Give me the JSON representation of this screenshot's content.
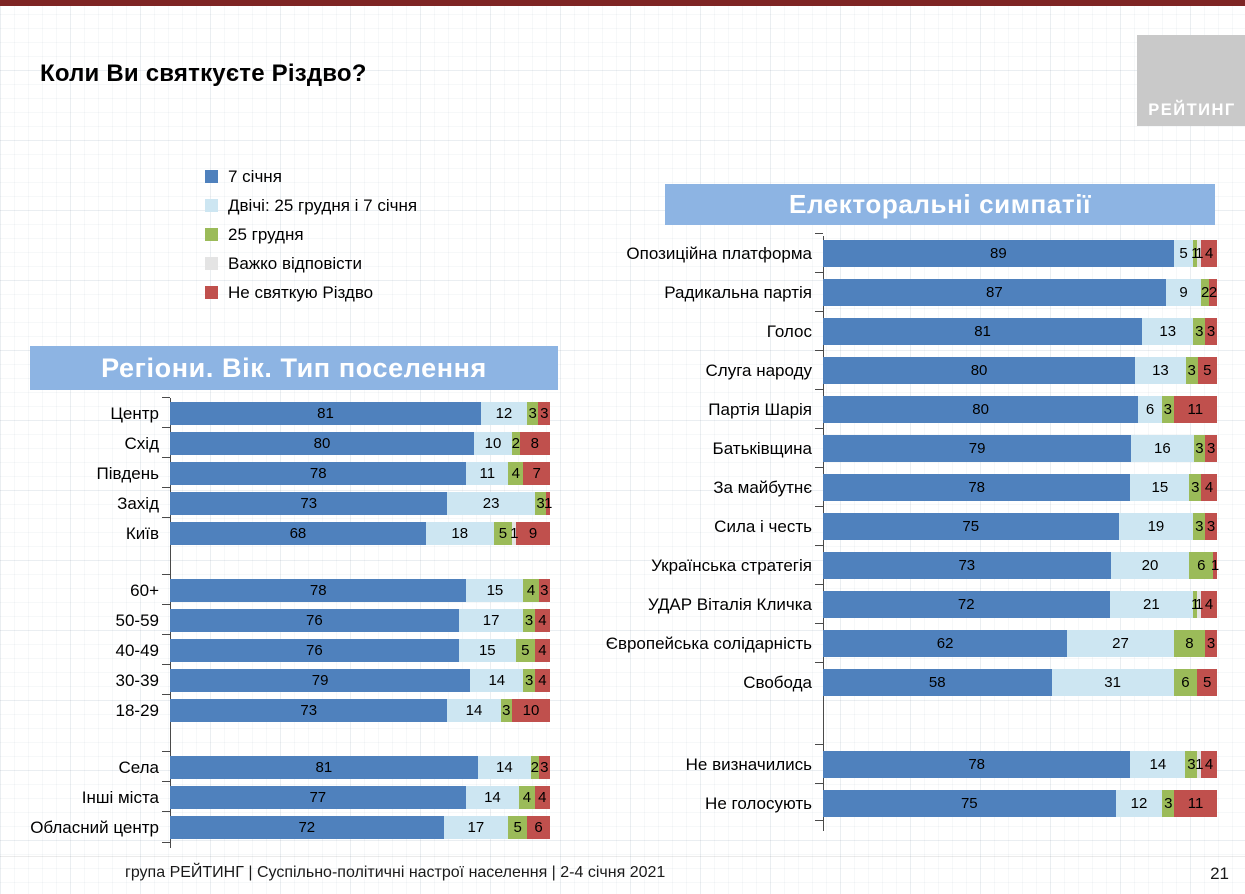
{
  "slide": {
    "title": "Коли Ви святкуєте Різдво?",
    "logo_text": "РЕЙТИНГ",
    "footer": "група РЕЙТИНГ | Суспільно-політичні настрої населення  | 2-4 січня 2021",
    "page_number": "21"
  },
  "colors": {
    "series": [
      "#4f81bd",
      "#cde6f2",
      "#9bbb59",
      "#e4e4e4",
      "#c0504d"
    ],
    "series_keys": [
      "jan7",
      "both-dates",
      "dec25",
      "hard-to-say",
      "no-celebrate"
    ],
    "banner_bg": "#8db4e3",
    "banner_text": "#ffffff",
    "top_bar": "#7e2524",
    "logo_bg": "#c9c9c9",
    "axis": "#4a4a4a"
  },
  "legend": {
    "items": [
      {
        "label": "7 січня",
        "color": "#4f81bd"
      },
      {
        "label": "Двічі: 25 грудня і 7 січня",
        "color": "#cde6f2"
      },
      {
        "label": "25 грудня",
        "color": "#9bbb59"
      },
      {
        "label": "Важко відповісти",
        "color": "#e4e4e4"
      },
      {
        "label": "Не святкую Різдво",
        "color": "#c0504d"
      }
    ]
  },
  "chart_data": [
    {
      "type": "bar",
      "variant": "horizontal-stacked",
      "title": "Регіони. Вік. Тип поселення",
      "unit": "%",
      "xlim": [
        0,
        100
      ],
      "series_names": [
        "7 січня",
        "Двічі: 25 грудня і 7 січня",
        "25 грудня",
        "Важко відповісти",
        "Не святкую Різдво"
      ],
      "groups": [
        {
          "name": "regions",
          "rows": [
            {
              "label": "Центр",
              "values": [
                81,
                12,
                3,
                0,
                3
              ]
            },
            {
              "label": "Схід",
              "values": [
                80,
                10,
                2,
                0,
                8
              ]
            },
            {
              "label": "Південь",
              "values": [
                78,
                11,
                4,
                0,
                7
              ]
            },
            {
              "label": "Захід",
              "values": [
                73,
                23,
                3,
                0,
                1
              ]
            },
            {
              "label": "Київ",
              "values": [
                68,
                18,
                5,
                1,
                9
              ]
            }
          ]
        },
        {
          "name": "age",
          "rows": [
            {
              "label": "60+",
              "values": [
                78,
                15,
                4,
                0,
                3
              ]
            },
            {
              "label": "50-59",
              "values": [
                76,
                17,
                3,
                0,
                4
              ]
            },
            {
              "label": "40-49",
              "values": [
                76,
                15,
                5,
                0,
                4
              ]
            },
            {
              "label": "30-39",
              "values": [
                79,
                14,
                3,
                0,
                4
              ]
            },
            {
              "label": "18-29",
              "values": [
                73,
                14,
                3,
                0,
                10
              ]
            }
          ]
        },
        {
          "name": "settlement",
          "rows": [
            {
              "label": "Села",
              "values": [
                81,
                14,
                2,
                0,
                3
              ]
            },
            {
              "label": "Інші міста",
              "values": [
                77,
                14,
                4,
                0,
                4
              ]
            },
            {
              "label": "Обласний центр",
              "values": [
                72,
                17,
                5,
                0,
                6
              ]
            }
          ]
        }
      ]
    },
    {
      "type": "bar",
      "variant": "horizontal-stacked",
      "title": "Електоральні симпатії",
      "unit": "%",
      "xlim": [
        0,
        100
      ],
      "series_names": [
        "7 січня",
        "Двічі: 25 грудня і 7 січня",
        "25 грудня",
        "Важко відповісти",
        "Не святкую Різдво"
      ],
      "groups": [
        {
          "name": "parties",
          "rows": [
            {
              "label": "Опозиційна платформа",
              "values": [
                89,
                5,
                1,
                1,
                4
              ]
            },
            {
              "label": "Радикальна партія",
              "values": [
                87,
                9,
                2,
                0,
                2
              ]
            },
            {
              "label": "Голос",
              "values": [
                81,
                13,
                3,
                0,
                3
              ]
            },
            {
              "label": "Слуга народу",
              "values": [
                80,
                13,
                3,
                0,
                5
              ]
            },
            {
              "label": "Партія Шарія",
              "values": [
                80,
                6,
                3,
                0,
                11
              ]
            },
            {
              "label": "Батьківщина",
              "values": [
                79,
                16,
                3,
                0,
                3
              ]
            },
            {
              "label": "За майбутнє",
              "values": [
                78,
                15,
                3,
                0,
                4
              ]
            },
            {
              "label": "Сила і честь",
              "values": [
                75,
                19,
                3,
                0,
                3
              ]
            },
            {
              "label": "Українська стратегія",
              "values": [
                73,
                20,
                6,
                0,
                1
              ]
            },
            {
              "label": "УДАР Віталія Кличка",
              "values": [
                72,
                21,
                1,
                1,
                4
              ]
            },
            {
              "label": "Європейська солідарність",
              "values": [
                62,
                27,
                8,
                0,
                3
              ]
            },
            {
              "label": "Свобода",
              "values": [
                58,
                31,
                6,
                0,
                5
              ]
            }
          ]
        },
        {
          "name": "non-voters",
          "rows": [
            {
              "label": "Не визначились",
              "values": [
                78,
                14,
                3,
                1,
                4
              ]
            },
            {
              "label": "Не голосують",
              "values": [
                75,
                12,
                3,
                0,
                11
              ]
            }
          ]
        }
      ]
    }
  ]
}
